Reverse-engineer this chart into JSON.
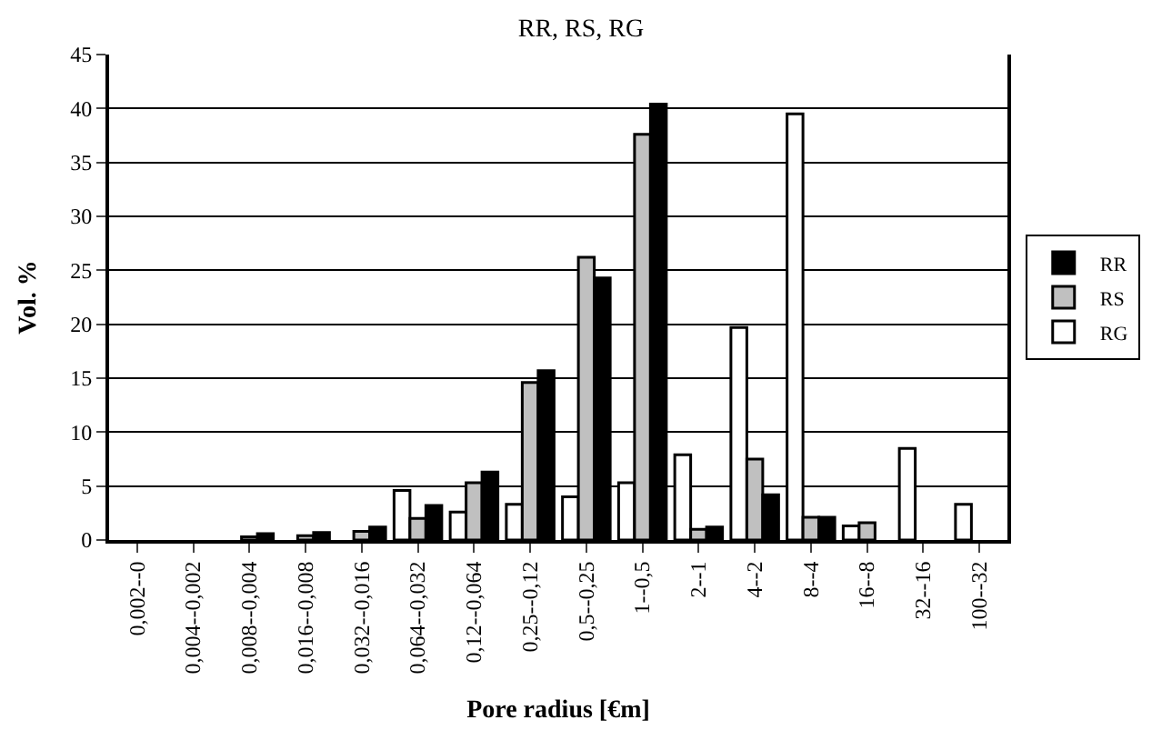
{
  "chart_data": {
    "type": "bar",
    "title": "RR, RS, RG",
    "xlabel": "Pore radius [€m]",
    "ylabel": "Vol. %",
    "categories": [
      "0,002--0",
      "0,004--0,002",
      "0,008--0,004",
      "0,016--0,008",
      "0,032--0,016",
      "0,064--0,032",
      "0,12--0,064",
      "0,25--0,12",
      "0,5--0,25",
      "1--0,5",
      "2--1",
      "4--2",
      "8--4",
      "16--8",
      "32--16",
      "100--32"
    ],
    "series": [
      {
        "name": "RG",
        "color": "#ffffff",
        "values": [
          0,
          0,
          0,
          0,
          0,
          4.6,
          2.6,
          3.3,
          4,
          5.3,
          7.9,
          19.7,
          39.5,
          1.3,
          8.5,
          3.3
        ]
      },
      {
        "name": "RS",
        "color": "#c0c0c0",
        "values": [
          0,
          0,
          0.3,
          0.4,
          0.8,
          2,
          5.3,
          14.6,
          26.2,
          37.6,
          1,
          7.5,
          2.1,
          1.6,
          0,
          0
        ]
      },
      {
        "name": "RR",
        "color": "#000000",
        "values": [
          0,
          0,
          0.6,
          0.7,
          1.2,
          3.2,
          6.3,
          15.7,
          24.3,
          40.4,
          1.2,
          4.2,
          2.1,
          0,
          0,
          0
        ]
      }
    ],
    "ylim": [
      0,
      45
    ],
    "yticks": [
      0,
      5,
      10,
      15,
      20,
      25,
      30,
      35,
      40,
      45
    ],
    "grid": "y",
    "legend": "right"
  }
}
